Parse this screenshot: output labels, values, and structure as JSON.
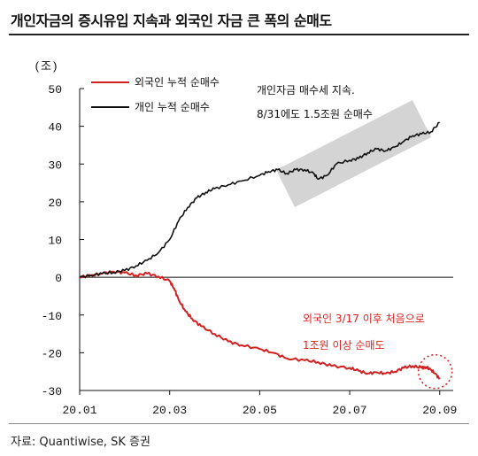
{
  "title": "개인자금의 증시유입 지속과 외국인 자금 큰 폭의 순매도",
  "source": "자료: Quantiwise, SK 증권",
  "colors": {
    "foreign": "#d42020",
    "individual": "#111111",
    "highlight": "#d4d4d4",
    "circle": "#e02020"
  },
  "chart_data": {
    "type": "line",
    "y_unit": "(조)",
    "ylim": [
      -30,
      50
    ],
    "y_ticks": [
      50,
      40,
      30,
      20,
      10,
      0,
      -10,
      -20,
      -30
    ],
    "x_ticks": [
      "20.01",
      "20.03",
      "20.05",
      "20.07",
      "20.09"
    ],
    "x_tick_months": [
      0,
      2,
      4,
      6,
      8
    ],
    "x_range_months": [
      0,
      8.3
    ],
    "series": [
      {
        "name": "외국인 누적 순매수",
        "x_months": [
          0,
          0.25,
          0.5,
          0.75,
          1.0,
          1.25,
          1.5,
          1.75,
          2.0,
          2.1,
          2.2,
          2.35,
          2.5,
          2.7,
          3.0,
          3.3,
          3.6,
          4.0,
          4.3,
          4.6,
          5.0,
          5.3,
          5.6,
          6.0,
          6.2,
          6.4,
          6.6,
          6.8,
          7.0,
          7.2,
          7.4,
          7.6,
          7.7,
          7.8,
          7.9,
          8.0
        ],
        "values": [
          0,
          0.5,
          1.0,
          1.5,
          1.2,
          0.5,
          1.0,
          0.2,
          -1,
          -3,
          -6,
          -9,
          -11,
          -13,
          -15,
          -17,
          -18,
          -19,
          -20,
          -21.5,
          -22,
          -22.5,
          -23.5,
          -24,
          -24.8,
          -25.5,
          -25.2,
          -25.5,
          -25.0,
          -24.0,
          -23.5,
          -24.0,
          -23.8,
          -24.5,
          -25.5,
          -27
        ]
      },
      {
        "name": "개인 누적 순매수",
        "x_months": [
          0,
          0.25,
          0.5,
          0.75,
          1.0,
          1.25,
          1.5,
          1.75,
          2.0,
          2.2,
          2.4,
          2.6,
          2.8,
          3.0,
          3.3,
          3.6,
          4.0,
          4.2,
          4.4,
          4.6,
          4.8,
          5.0,
          5.2,
          5.3,
          5.5,
          5.7,
          6.0,
          6.2,
          6.4,
          6.6,
          6.8,
          7.0,
          7.2,
          7.4,
          7.6,
          7.8,
          8.0
        ],
        "values": [
          0,
          0.5,
          1.0,
          1.3,
          1.8,
          3.0,
          4.5,
          6.5,
          10,
          15,
          18.5,
          21,
          22.5,
          23.5,
          24.5,
          25.5,
          27,
          28,
          28.5,
          27.5,
          28.5,
          28.5,
          27.5,
          26,
          27,
          30,
          31,
          31.5,
          33,
          34,
          33.5,
          34.5,
          36,
          37.5,
          38,
          38.5,
          41
        ]
      }
    ],
    "annotations": [
      {
        "text": "개인자금 매수세 지속.",
        "color": "black"
      },
      {
        "text": "8/31에도 1.5조원 순매수",
        "color": "black"
      },
      {
        "text": "외국인 3/17 이후 처음으로",
        "color": "red"
      },
      {
        "text": "1조원 이상 순매도",
        "color": "red"
      }
    ],
    "grid": false,
    "legend": "top-left"
  }
}
